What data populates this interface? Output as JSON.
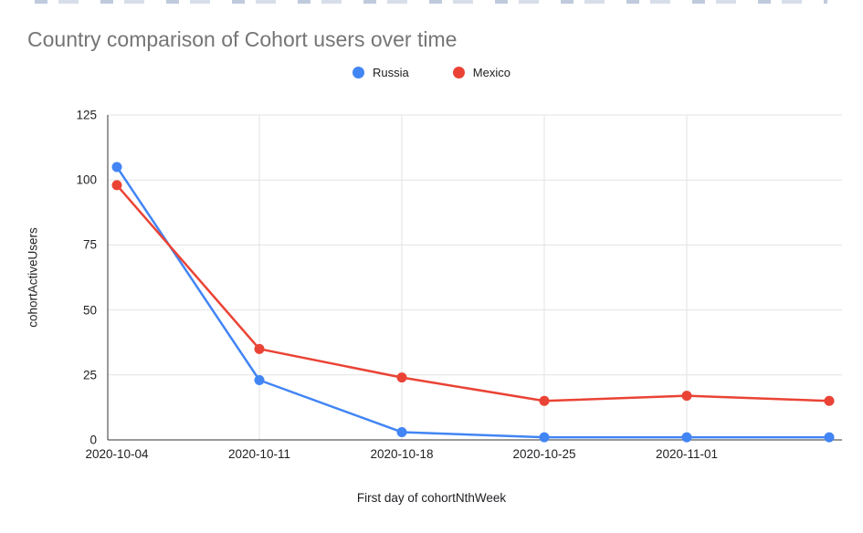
{
  "chart_data": {
    "type": "line",
    "title": "Country comparison of Cohort users over time",
    "xlabel": "First day of cohortNthWeek",
    "ylabel": "cohortActiveUsers",
    "categories": [
      "2020-10-04",
      "2020-10-11",
      "2020-10-18",
      "2020-10-25",
      "2020-11-01",
      ""
    ],
    "series": [
      {
        "name": "Russia",
        "color": "#4285f4",
        "values": [
          105,
          23,
          3,
          1,
          1,
          1
        ]
      },
      {
        "name": "Mexico",
        "color": "#ea4335",
        "values": [
          98,
          35,
          24,
          15,
          17,
          15
        ]
      }
    ],
    "ylim": [
      0,
      125
    ],
    "yticks": [
      0,
      25,
      50,
      75,
      100,
      125
    ],
    "grid": true,
    "legend_position": "top-center",
    "axis_color": "#333333",
    "gridline_color": "#e3e3e3",
    "title_color": "#757575",
    "text_color": "#202124"
  }
}
